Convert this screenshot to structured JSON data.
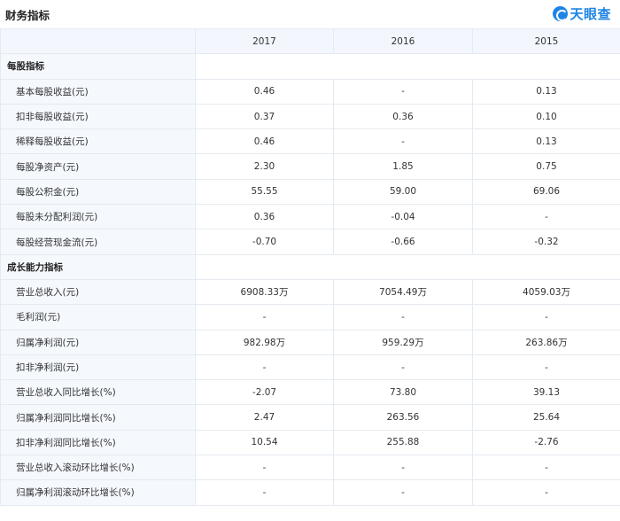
{
  "header": {
    "title": "财务指标",
    "logo_text": "天眼查",
    "logo_icon": "tianyancha-logo-icon",
    "accent_color": "#1e84e6"
  },
  "table": {
    "years": [
      "2017",
      "2016",
      "2015"
    ],
    "sections": [
      {
        "title": "每股指标",
        "rows": [
          {
            "label": "基本每股收益(元)",
            "values": [
              "0.46",
              "-",
              "0.13"
            ]
          },
          {
            "label": "扣非每股收益(元)",
            "values": [
              "0.37",
              "0.36",
              "0.10"
            ]
          },
          {
            "label": "稀释每股收益(元)",
            "values": [
              "0.46",
              "-",
              "0.13"
            ]
          },
          {
            "label": "每股净资产(元)",
            "values": [
              "2.30",
              "1.85",
              "0.75"
            ]
          },
          {
            "label": "每股公积金(元)",
            "values": [
              "55.55",
              "59.00",
              "69.06"
            ]
          },
          {
            "label": "每股未分配利润(元)",
            "values": [
              "0.36",
              "-0.04",
              "-"
            ]
          },
          {
            "label": "每股经营现金流(元)",
            "values": [
              "-0.70",
              "-0.66",
              "-0.32"
            ]
          }
        ]
      },
      {
        "title": "成长能力指标",
        "rows": [
          {
            "label": "营业总收入(元)",
            "values": [
              "6908.33万",
              "7054.49万",
              "4059.03万"
            ]
          },
          {
            "label": "毛利润(元)",
            "values": [
              "-",
              "-",
              "-"
            ]
          },
          {
            "label": "归属净利润(元)",
            "values": [
              "982.98万",
              "959.29万",
              "263.86万"
            ]
          },
          {
            "label": "扣非净利润(元)",
            "values": [
              "-",
              "-",
              "-"
            ]
          },
          {
            "label": "营业总收入同比增长(%)",
            "values": [
              "-2.07",
              "73.80",
              "39.13"
            ]
          },
          {
            "label": "归属净利润同比增长(%)",
            "values": [
              "2.47",
              "263.56",
              "25.64"
            ]
          },
          {
            "label": "扣非净利润同比增长(%)",
            "values": [
              "10.54",
              "255.88",
              "-2.76"
            ]
          },
          {
            "label": "营业总收入滚动环比增长(%)",
            "values": [
              "-",
              "-",
              "-"
            ]
          },
          {
            "label": "归属净利润滚动环比增长(%)",
            "values": [
              "-",
              "-",
              "-"
            ]
          }
        ]
      }
    ]
  }
}
